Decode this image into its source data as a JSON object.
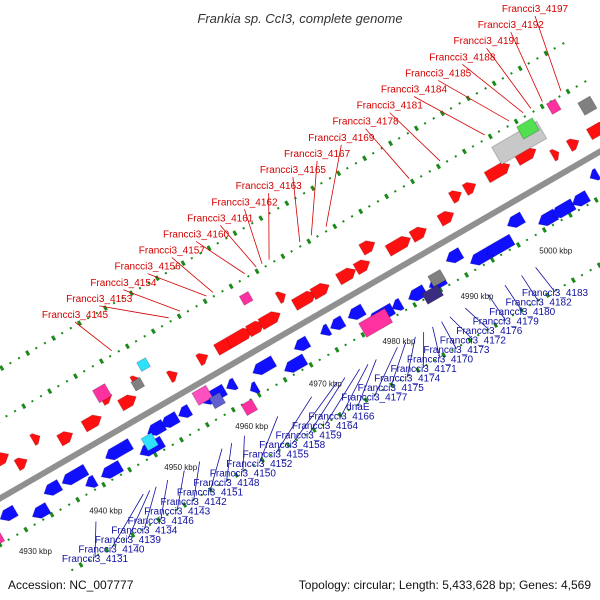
{
  "map": {
    "title": "Frankia sp. CcI3, complete genome",
    "accession_label": "Accession: NC_007777",
    "summary_label": "Topology: circular; Length: 5,433,628 bp; Genes: 4,569",
    "colors": {
      "forward_gene": "#ff1010",
      "reverse_gene": "#1010ff",
      "rna_gene": "#ff30a0",
      "pseudo_gene": "#808080",
      "other_gene": "#30e0ff",
      "top_label": "#d40000",
      "bottom_label": "#1010a0",
      "dots": "#1a8a1a",
      "backbone": "#909090"
    },
    "scale_ticks": [
      {
        "label": "4930 kbp",
        "t": 0.035
      },
      {
        "label": "4940 kbp",
        "t": 0.145
      },
      {
        "label": "4950 kbp",
        "t": 0.262
      },
      {
        "label": "4960 kbp",
        "t": 0.373
      },
      {
        "label": "4970 kbp",
        "t": 0.488
      },
      {
        "label": "4980 kbp",
        "t": 0.603
      },
      {
        "label": "4990 kbp",
        "t": 0.725
      },
      {
        "label": "5000 kbp",
        "t": 0.848
      }
    ],
    "top_labels": [
      {
        "text": "Francci3_4197",
        "t": 0.964
      },
      {
        "text": "Francci3_4192",
        "t": 0.935
      },
      {
        "text": "Francci3_4191",
        "t": 0.917
      },
      {
        "text": "Francci3_4188",
        "t": 0.905
      },
      {
        "text": "Francci3_4185",
        "t": 0.883
      },
      {
        "text": "Francci3_4184",
        "t": 0.845
      },
      {
        "text": "Francci3_4181",
        "t": 0.775
      },
      {
        "text": "Francci3_4178",
        "t": 0.727
      },
      {
        "text": "Francci3_4169",
        "t": 0.597
      },
      {
        "text": "Francci3_4167",
        "t": 0.574
      },
      {
        "text": "Francci3_4165",
        "t": 0.556
      },
      {
        "text": "Francci3_4163",
        "t": 0.508
      },
      {
        "text": "Francci3_4162",
        "t": 0.497
      },
      {
        "text": "Francci3_4161",
        "t": 0.488
      },
      {
        "text": "Francci3_4160",
        "t": 0.47
      },
      {
        "text": "Francci3_4157",
        "t": 0.42
      },
      {
        "text": "Francci3_4156",
        "t": 0.41
      },
      {
        "text": "Francci3_4154",
        "t": 0.369
      },
      {
        "text": "Francci3_4153",
        "t": 0.351
      },
      {
        "text": "Francci3_4145",
        "t": 0.262
      }
    ],
    "bottom_labels": [
      {
        "text": "Francci3_4183",
        "t": 0.815
      },
      {
        "text": "Francci3_4182",
        "t": 0.793
      },
      {
        "text": "Francci3_4180",
        "t": 0.767
      },
      {
        "text": "Francci3_4179",
        "t": 0.741
      },
      {
        "text": "Francci3_4176",
        "t": 0.705
      },
      {
        "text": "Francci3_4172",
        "t": 0.681
      },
      {
        "text": "Francci3_4173",
        "t": 0.668
      },
      {
        "text": "Francci3_4170",
        "t": 0.654
      },
      {
        "text": "Francci3_4171",
        "t": 0.64
      },
      {
        "text": "Francci3_4174",
        "t": 0.627
      },
      {
        "text": "Francci3_4175",
        "t": 0.612
      },
      {
        "text": "Francci3_4177",
        "t": 0.599
      },
      {
        "text": "dnaE",
        "t": 0.566
      },
      {
        "text": "Francci3_4166",
        "t": 0.553
      },
      {
        "text": "Francci3_4164",
        "t": 0.54
      },
      {
        "text": "Francci3_4159",
        "t": 0.517
      },
      {
        "text": "Francci3_4158",
        "t": 0.505
      },
      {
        "text": "Francci3_4155",
        "t": 0.465
      },
      {
        "text": "Francci3_4152",
        "t": 0.412
      },
      {
        "text": "Francci3_4150",
        "t": 0.36
      },
      {
        "text": "Francci3_4148",
        "t": 0.34
      },
      {
        "text": "Francci3_4151",
        "t": 0.325
      },
      {
        "text": "Francci3_4142",
        "t": 0.29
      },
      {
        "text": "Francci3_4143",
        "t": 0.266
      },
      {
        "text": "Francci3_4146",
        "t": 0.24
      },
      {
        "text": "Francci3_4134",
        "t": 0.222
      },
      {
        "text": "Francci3_4139",
        "t": 0.212
      },
      {
        "text": "Francci3_4140",
        "t": 0.202
      },
      {
        "text": "Francci3_4131",
        "t": 0.128
      }
    ]
  }
}
